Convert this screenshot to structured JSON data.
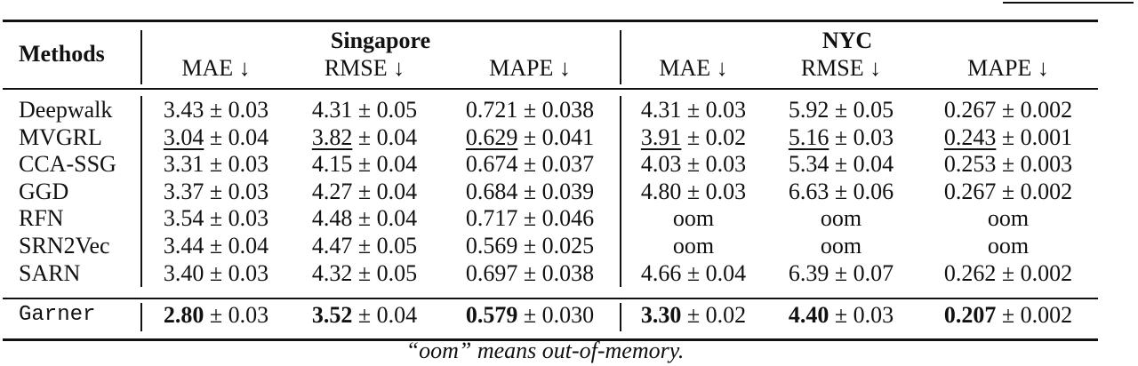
{
  "table": {
    "header": {
      "methods_label": "Methods",
      "groups": [
        {
          "name": "Singapore",
          "metrics": [
            "MAE ↓",
            "RMSE ↓",
            "MAPE ↓"
          ]
        },
        {
          "name": "NYC",
          "metrics": [
            "MAE ↓",
            "RMSE ↓",
            "MAPE ↓"
          ]
        }
      ]
    },
    "rows": [
      {
        "method": "Deepwalk",
        "cells": [
          {
            "v": "3.43",
            "pm": "± 0.03"
          },
          {
            "v": "4.31",
            "pm": "± 0.05"
          },
          {
            "v": "0.721",
            "pm": "± 0.038"
          },
          {
            "v": "4.31",
            "pm": "± 0.03"
          },
          {
            "v": "5.92",
            "pm": "± 0.05"
          },
          {
            "v": "0.267",
            "pm": "± 0.002"
          }
        ]
      },
      {
        "method": "MVGRL",
        "cells": [
          {
            "v": "3.04",
            "pm": "± 0.04",
            "underline": true
          },
          {
            "v": "3.82",
            "pm": "± 0.04",
            "underline": true
          },
          {
            "v": "0.629",
            "pm": "± 0.041",
            "underline": true
          },
          {
            "v": "3.91",
            "pm": "± 0.02",
            "underline": true
          },
          {
            "v": "5.16",
            "pm": "± 0.03",
            "underline": true
          },
          {
            "v": "0.243",
            "pm": "± 0.001",
            "underline": true
          }
        ]
      },
      {
        "method": "CCA-SSG",
        "cells": [
          {
            "v": "3.31",
            "pm": "± 0.03"
          },
          {
            "v": "4.15",
            "pm": "± 0.04"
          },
          {
            "v": "0.674",
            "pm": "± 0.037"
          },
          {
            "v": "4.03",
            "pm": "± 0.03"
          },
          {
            "v": "5.34",
            "pm": "± 0.04"
          },
          {
            "v": "0.253",
            "pm": "± 0.003"
          }
        ]
      },
      {
        "method": "GGD",
        "cells": [
          {
            "v": "3.37",
            "pm": "± 0.03"
          },
          {
            "v": "4.27",
            "pm": "± 0.04"
          },
          {
            "v": "0.684",
            "pm": "± 0.039"
          },
          {
            "v": "4.80",
            "pm": "± 0.03"
          },
          {
            "v": "6.63",
            "pm": "± 0.06"
          },
          {
            "v": "0.267",
            "pm": "± 0.002"
          }
        ]
      },
      {
        "method": "RFN",
        "cells": [
          {
            "v": "3.54",
            "pm": "± 0.03"
          },
          {
            "v": "4.48",
            "pm": "± 0.04"
          },
          {
            "v": "0.717",
            "pm": "± 0.046"
          },
          {
            "v": "oom",
            "pm": ""
          },
          {
            "v": "oom",
            "pm": ""
          },
          {
            "v": "oom",
            "pm": ""
          }
        ]
      },
      {
        "method": "SRN2Vec",
        "cells": [
          {
            "v": "3.44",
            "pm": "± 0.04"
          },
          {
            "v": "4.47",
            "pm": "± 0.05"
          },
          {
            "v": "0.569",
            "pm": "± 0.025"
          },
          {
            "v": "oom",
            "pm": ""
          },
          {
            "v": "oom",
            "pm": ""
          },
          {
            "v": "oom",
            "pm": ""
          }
        ]
      },
      {
        "method": "SARN",
        "cells": [
          {
            "v": "3.40",
            "pm": "± 0.03"
          },
          {
            "v": "4.32",
            "pm": "± 0.05"
          },
          {
            "v": "0.697",
            "pm": "± 0.038"
          },
          {
            "v": "4.66",
            "pm": "± 0.04"
          },
          {
            "v": "6.39",
            "pm": "± 0.07"
          },
          {
            "v": "0.262",
            "pm": "± 0.002"
          }
        ]
      }
    ],
    "ours": {
      "method": "Garner",
      "cells": [
        {
          "v": "2.80",
          "pm": "± 0.03"
        },
        {
          "v": "3.52",
          "pm": "± 0.04"
        },
        {
          "v": "0.579",
          "pm": "± 0.030"
        },
        {
          "v": "3.30",
          "pm": "± 0.02"
        },
        {
          "v": "4.40",
          "pm": "± 0.03"
        },
        {
          "v": "0.207",
          "pm": "± 0.002"
        }
      ]
    },
    "caption": "“oom” means out-of-memory."
  }
}
